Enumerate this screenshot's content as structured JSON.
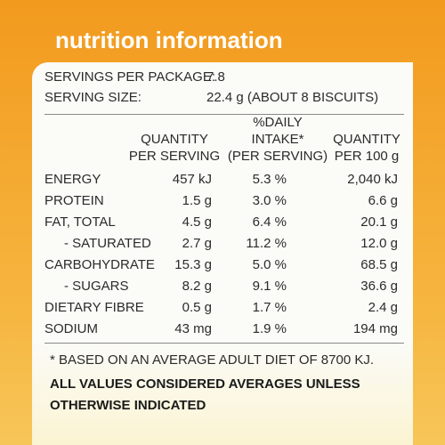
{
  "header": {
    "title": "nutrition information"
  },
  "servings": [
    {
      "label": "SERVINGS PER PACKAGE:",
      "value": "7.8"
    },
    {
      "label": "SERVING SIZE:",
      "value": "22.4 g (ABOUT 8 BISCUITS)"
    }
  ],
  "table": {
    "columns": [
      [
        "QUANTITY",
        "PER SERVING"
      ],
      [
        "%DAILY",
        "INTAKE*",
        "(PER SERVING)"
      ],
      [
        "QUANTITY",
        "PER 100 g"
      ]
    ],
    "rows": [
      [
        "ENERGY",
        "457 kJ",
        "5.3 %",
        "2,040 kJ"
      ],
      [
        "PROTEIN",
        "1.5 g",
        "3.0 %",
        "6.6 g"
      ],
      [
        "FAT, TOTAL",
        "4.5 g",
        "6.4 %",
        "20.1 g"
      ],
      [
        "- SATURATED",
        "2.7 g",
        "11.2 %",
        "12.0 g"
      ],
      [
        "CARBOHYDRATE",
        "15.3 g",
        "5.0 %",
        "68.5 g"
      ],
      [
        "- SUGARS",
        "8.2 g",
        "9.1 %",
        "36.6 g"
      ],
      [
        "DIETARY FIBRE",
        "0.5 g",
        "1.7 %",
        "2.4 g"
      ],
      [
        "SODIUM",
        "43 mg",
        "1.9 %",
        "194 mg"
      ]
    ]
  },
  "footnote": "* BASED ON AN AVERAGE ADULT DIET OF 8700 KJ.",
  "notice": [
    "ALL VALUES CONSIDERED AVERAGES UNLESS",
    "OTHERWISE INDICATED"
  ]
}
